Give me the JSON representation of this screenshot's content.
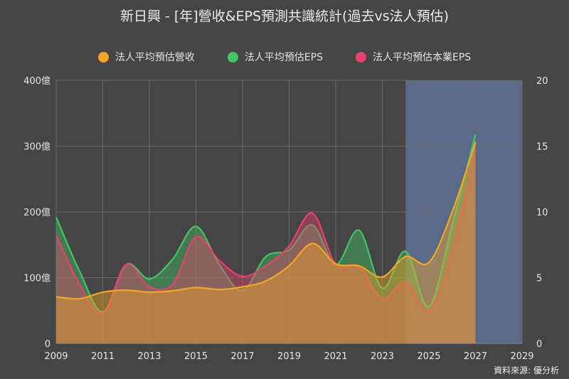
{
  "chart_data": {
    "type": "area",
    "title": "新日興 - [年]營收&EPS預測共識統計(過去vs法人預估)",
    "x": [
      2009,
      2010,
      2011,
      2012,
      2013,
      2014,
      2015,
      2016,
      2017,
      2018,
      2019,
      2020,
      2021,
      2022,
      2023,
      2024,
      2025,
      2026,
      2027
    ],
    "xticks": [
      "2009",
      "2011",
      "2013",
      "2015",
      "2017",
      "2019",
      "2021",
      "2023",
      "2025",
      "2027",
      "2029"
    ],
    "xlim": [
      2009,
      2029
    ],
    "yticks_left": [
      "0",
      "100億",
      "200億",
      "300億",
      "400億"
    ],
    "ylim_left": [
      0,
      400
    ],
    "yticks_right": [
      "0",
      "5",
      "10",
      "15",
      "20"
    ],
    "ylim_right": [
      0,
      20
    ],
    "forecast_band": [
      2024,
      2029
    ],
    "grid": true,
    "legend_position": "top",
    "series": [
      {
        "name": "法人平均預估營收",
        "axis": "left",
        "color": "#f5a623",
        "values": [
          71,
          68,
          78,
          81,
          78,
          80,
          85,
          82,
          86,
          95,
          118,
          152,
          121,
          118,
          101,
          132,
          123,
          200,
          306
        ]
      },
      {
        "name": "法人平均預估EPS",
        "axis": "right",
        "color": "#43c463",
        "values": [
          9.6,
          5.5,
          2.4,
          6.0,
          4.9,
          6.4,
          8.9,
          6.0,
          4.0,
          6.6,
          7.1,
          9.0,
          6.0,
          8.6,
          4.2,
          7.0,
          2.8,
          9.0,
          15.9
        ]
      },
      {
        "name": "法人平均預估本業EPS",
        "axis": "right",
        "color": "#e8416d",
        "values": [
          8.2,
          4.5,
          2.3,
          6.0,
          4.3,
          4.5,
          8.1,
          6.3,
          5.1,
          5.9,
          7.4,
          9.9,
          6.0,
          5.8,
          3.4,
          4.7,
          2.5,
          7.0,
          14.7
        ]
      }
    ],
    "source": "資料來源: 優分析"
  },
  "colors": {
    "background": "#454545",
    "grid": "#6a6a6a",
    "forecast_band": "#5c6a8a",
    "text": "#e6e6e6"
  }
}
